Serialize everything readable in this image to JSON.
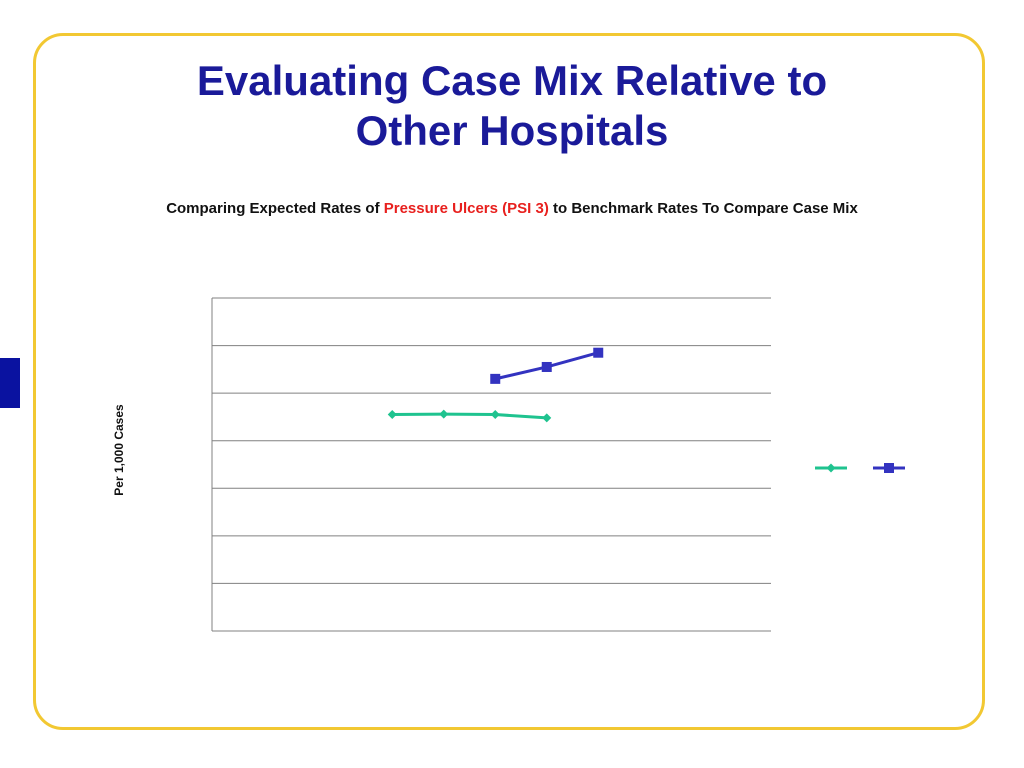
{
  "slide": {
    "title_line1": "Evaluating Case Mix Relative to",
    "title_line2": "Other Hospitals",
    "colors": {
      "border": "#f2c832",
      "title": "#1a1a99",
      "highlight": "#e8201e",
      "side_tab": "#0a12a0"
    }
  },
  "chart_data": {
    "type": "line",
    "title_parts": {
      "before": "Comparing Expected Rates of ",
      "highlight": "Pressure Ulcers (PSI 3)",
      "after": " to Benchmark Rates To Compare Case Mix"
    },
    "ylabel": "Per 1,000 Cases",
    "xlabel": "",
    "ylim": [
      0,
      7
    ],
    "y_gridlines": [
      0,
      1,
      2,
      3,
      4,
      5,
      6,
      7
    ],
    "x_slots": 10,
    "series": [
      {
        "color": "#1fc38f",
        "marker": "diamond",
        "x": [
          4,
          5,
          6,
          7
        ],
        "values": [
          4.55,
          4.56,
          4.55,
          4.48
        ]
      },
      {
        "color": "#3333c0",
        "marker": "square",
        "x": [
          6,
          7,
          8
        ],
        "values": [
          5.3,
          5.55,
          5.85
        ]
      }
    ],
    "legend_position": "right",
    "grid": true
  }
}
